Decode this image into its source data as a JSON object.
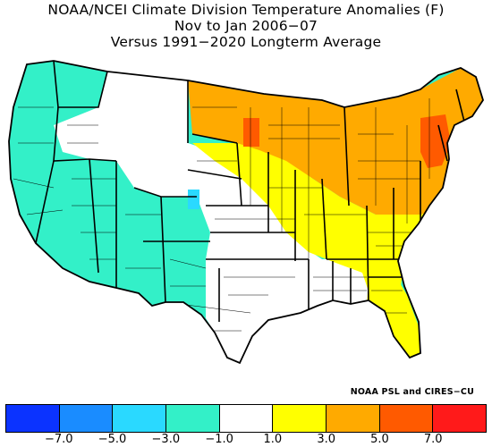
{
  "title": {
    "line1": "NOAA/NCEI Climate Division Temperature Anomalies (F)",
    "line2": "Nov to Jan 2006−07",
    "line3": "Versus 1991−2020 Longterm Average"
  },
  "credit": "NOAA PSL and CIRES−CU",
  "legend": {
    "colors": [
      "#0b33ff",
      "#1a8cff",
      "#2ad9ff",
      "#33f0c8",
      "#ffffff",
      "#ffff00",
      "#ffaa00",
      "#ff5a00",
      "#ff1a1a"
    ],
    "tick_labels": [
      "−7.0",
      "−5.0",
      "−3.0",
      "−1.0",
      "1.0",
      "3.0",
      "5.0",
      "7.0"
    ]
  },
  "map": {
    "regions": [
      {
        "name": "west",
        "color": "#33f0c8"
      },
      {
        "name": "central-plains",
        "color": "#ffffff"
      },
      {
        "name": "midwest-mid-atlantic",
        "color": "#ffff00"
      },
      {
        "name": "great-lakes-northeast",
        "color": "#ffaa00"
      },
      {
        "name": "minnesota-pocket",
        "color": "#ff5a00"
      },
      {
        "name": "new-york-pocket",
        "color": "#ff5a00"
      },
      {
        "name": "colorado-pocket",
        "color": "#2ad9ff"
      },
      {
        "name": "florida-gulf",
        "color": "#ffff00"
      }
    ]
  }
}
